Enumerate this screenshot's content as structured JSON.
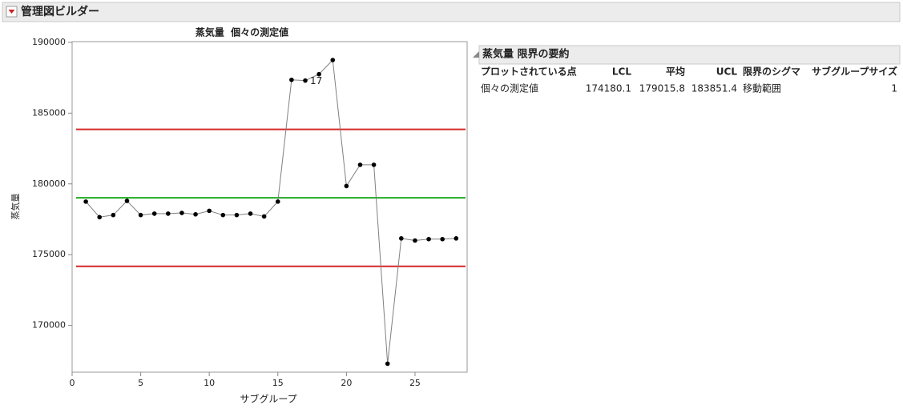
{
  "window_title": "管理図ビルダー",
  "chart_data": {
    "type": "control",
    "title": "蒸気量  個々の測定値",
    "x_label": "サブグループ",
    "y_label": "蒸気量",
    "x": [
      1,
      2,
      3,
      4,
      5,
      6,
      7,
      8,
      9,
      10,
      11,
      12,
      13,
      14,
      15,
      16,
      17,
      18,
      19,
      20,
      21,
      22,
      23,
      24,
      25,
      26,
      27,
      28
    ],
    "values": [
      178750,
      177650,
      177800,
      178800,
      177800,
      177900,
      177900,
      177950,
      177850,
      178100,
      177800,
      177800,
      177900,
      177700,
      178750,
      187350,
      187300,
      187750,
      188750,
      179850,
      181350,
      181350,
      167300,
      176150,
      176000,
      176100,
      176100,
      176150
    ],
    "color": "#000000",
    "line_color": "#808080",
    "lcl": 174180.1,
    "center": 179015.8,
    "ucl": 183851.4,
    "limit_color": "#d62728",
    "center_color": "#22aa22",
    "labeled_points": [
      17
    ],
    "xlim": [
      0,
      28.8
    ],
    "ylim": [
      166700,
      190050
    ],
    "xticks": [
      0,
      5,
      10,
      15,
      20,
      25
    ],
    "yticks": [
      170000,
      175000,
      180000,
      185000,
      190000
    ]
  },
  "summary": {
    "title": "蒸気量 限界の要約",
    "headers": [
      "プロットされている点",
      "LCL",
      "平均",
      "UCL",
      "限界のシグマ",
      "サブグループサイズ"
    ],
    "plotted": "個々の測定値",
    "sigma": "移動範囲",
    "subgroup_size": 1
  }
}
